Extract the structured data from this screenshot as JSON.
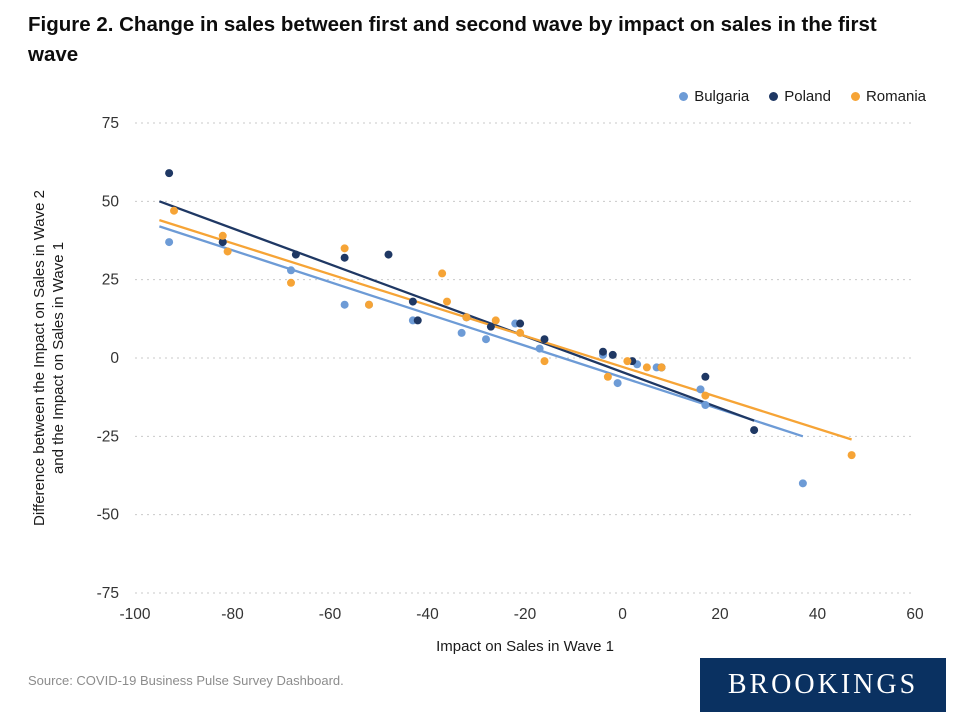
{
  "title": "Figure 2. Change in sales between first and second wave by impact on sales in the first wave",
  "source": "Source: COVID-19 Business Pulse Survey Dashboard.",
  "logo_text": "BROOKINGS",
  "colors": {
    "logo_bg": "#0a3161",
    "grid": "#c9c9c9",
    "tick_text": "#333333"
  },
  "chart_data": {
    "type": "scatter",
    "title": "Figure 2. Change in sales between first and second wave by impact on sales in the first wave",
    "xlabel": "Impact on Sales in Wave 1",
    "ylabel_lines": [
      "Difference between the Impact on Sales in Wave  2",
      "and the Impact on Sales in Wave 1"
    ],
    "xlim": [
      -100,
      60
    ],
    "ylim": [
      -75,
      75
    ],
    "xticks": [
      -100,
      -80,
      -60,
      -40,
      -20,
      0,
      20,
      40,
      60
    ],
    "yticks": [
      -75,
      -50,
      -25,
      0,
      25,
      50,
      75
    ],
    "grid": "horizontal-dotted",
    "legend_position": "top-right",
    "series": [
      {
        "name": "Bulgaria",
        "color": "#6d9bd6",
        "points": [
          [
            -93,
            37
          ],
          [
            -82,
            37
          ],
          [
            -68,
            28
          ],
          [
            -57,
            17
          ],
          [
            -52,
            17
          ],
          [
            -43,
            12
          ],
          [
            -33,
            8
          ],
          [
            -28,
            6
          ],
          [
            -22,
            11
          ],
          [
            -17,
            3
          ],
          [
            -4,
            1
          ],
          [
            -1,
            -8
          ],
          [
            3,
            -2
          ],
          [
            7,
            -3
          ],
          [
            16,
            -10
          ],
          [
            17,
            -15
          ],
          [
            37,
            -40
          ]
        ],
        "trend": [
          [
            -95,
            42
          ],
          [
            37,
            -25
          ]
        ]
      },
      {
        "name": "Poland",
        "color": "#1f3864",
        "points": [
          [
            -93,
            59
          ],
          [
            -82,
            37
          ],
          [
            -67,
            33
          ],
          [
            -57,
            32
          ],
          [
            -48,
            33
          ],
          [
            -43,
            18
          ],
          [
            -42,
            12
          ],
          [
            -32,
            13
          ],
          [
            -27,
            10
          ],
          [
            -21,
            11
          ],
          [
            -16,
            6
          ],
          [
            -4,
            2
          ],
          [
            -2,
            1
          ],
          [
            2,
            -1
          ],
          [
            8,
            -3
          ],
          [
            17,
            -6
          ],
          [
            27,
            -23
          ]
        ],
        "trend": [
          [
            -95,
            50
          ],
          [
            27,
            -20
          ]
        ]
      },
      {
        "name": "Romania",
        "color": "#f6a436",
        "points": [
          [
            -92,
            47
          ],
          [
            -82,
            39
          ],
          [
            -81,
            34
          ],
          [
            -68,
            24
          ],
          [
            -57,
            35
          ],
          [
            -52,
            17
          ],
          [
            -37,
            27
          ],
          [
            -36,
            18
          ],
          [
            -32,
            13
          ],
          [
            -26,
            12
          ],
          [
            -21,
            8
          ],
          [
            -16,
            -1
          ],
          [
            -3,
            -6
          ],
          [
            1,
            -1
          ],
          [
            5,
            -3
          ],
          [
            8,
            -3
          ],
          [
            17,
            -12
          ],
          [
            47,
            -31
          ]
        ],
        "trend": [
          [
            -95,
            44
          ],
          [
            47,
            -26
          ]
        ]
      }
    ]
  }
}
